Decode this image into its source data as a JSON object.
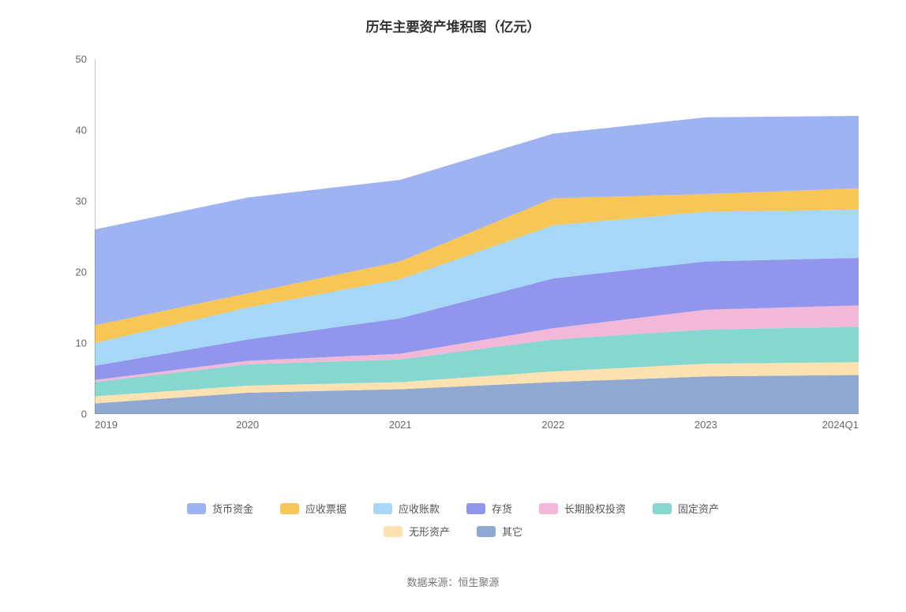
{
  "chart": {
    "type": "stacked-area",
    "title": "历年主要资产堆积图（亿元）",
    "title_fontsize": 17,
    "title_fontweight": 700,
    "title_color": "#333333",
    "background_color": "#ffffff",
    "axis_label_color": "#666666",
    "axis_label_fontsize": 13,
    "axis_line_color": "#888888",
    "axis_line_width": 1,
    "ylim": [
      0,
      50
    ],
    "ytick_step": 10,
    "yticks": [
      0,
      10,
      20,
      30,
      40,
      50
    ],
    "xticks": [
      "2019",
      "2020",
      "2021",
      "2022",
      "2023",
      "2024Q1"
    ],
    "series": [
      {
        "name": "其它",
        "color": "#91a8d0",
        "values": [
          1.5,
          3.0,
          3.5,
          4.5,
          5.3,
          5.5
        ]
      },
      {
        "name": "无形资产",
        "color": "#fce2b0",
        "values": [
          1.0,
          1.0,
          1.0,
          1.5,
          1.8,
          1.8
        ]
      },
      {
        "name": "固定资产",
        "color": "#86d7cf",
        "values": [
          2.0,
          3.0,
          3.2,
          4.5,
          4.8,
          5.0
        ]
      },
      {
        "name": "长期股权投资",
        "color": "#f2b8d8",
        "values": [
          0.3,
          0.5,
          0.8,
          1.6,
          2.8,
          3.0
        ]
      },
      {
        "name": "存货",
        "color": "#8f96ec",
        "values": [
          2.0,
          3.0,
          5.0,
          7.0,
          6.8,
          6.7
        ]
      },
      {
        "name": "应收账款",
        "color": "#a7d7f7",
        "values": [
          3.2,
          4.5,
          5.5,
          7.5,
          7.0,
          6.8
        ]
      },
      {
        "name": "应收票据",
        "color": "#f7c656",
        "values": [
          2.5,
          2.0,
          2.5,
          3.8,
          2.5,
          3.0
        ]
      },
      {
        "name": "货币资金",
        "color": "#9fb2f2",
        "values": [
          13.5,
          13.5,
          11.5,
          9.1,
          10.8,
          10.2
        ]
      }
    ],
    "legend_order": [
      "货币资金",
      "应收票据",
      "应收账款",
      "存货",
      "长期股权投资",
      "固定资产",
      "无形资产",
      "其它"
    ],
    "legend_swatch_width": 24,
    "legend_swatch_height": 14,
    "legend_swatch_radius": 3,
    "legend_fontsize": 13,
    "legend_color": "#555555"
  },
  "source_label": "数据来源：恒生聚源",
  "source_color": "#777777",
  "source_fontsize": 13
}
